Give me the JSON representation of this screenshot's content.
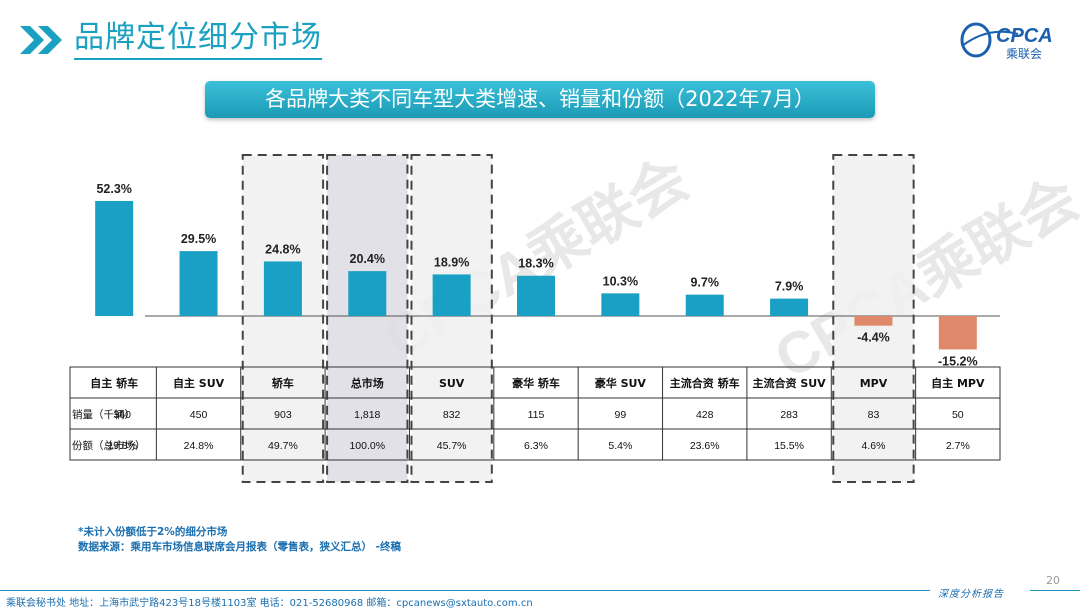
{
  "header": {
    "title": "品牌定位细分市场",
    "logo_text": "CPCA",
    "logo_subtext": "乘联会"
  },
  "banner": {
    "title": "各品牌大类不同车型大类增速、销量和份额（2022年7月）"
  },
  "chart_data": {
    "type": "bar",
    "categories": [
      "自主 轿车",
      "自主 SUV",
      "轿车",
      "总市场",
      "SUV",
      "豪华 轿车",
      "豪华 SUV",
      "主流合资 轿车",
      "主流合资 SUV",
      "MPV",
      "自主 MPV"
    ],
    "values": [
      52.3,
      29.5,
      24.8,
      20.4,
      18.9,
      18.3,
      10.3,
      9.7,
      7.9,
      -4.4,
      -15.2
    ],
    "value_labels": [
      "52.3%",
      "29.5%",
      "24.8%",
      "20.4%",
      "18.9%",
      "18.3%",
      "10.3%",
      "9.7%",
      "7.9%",
      "-4.4%",
      "-15.2%"
    ],
    "ylim": [
      -17,
      58
    ],
    "grid": false,
    "highlighted_columns": [
      2,
      3,
      4,
      9
    ],
    "colors": {
      "positive": "#19a0c4",
      "negative": "#e0896a",
      "highlight_fill": "#f0f0f0",
      "total_fill": "#dcdce3"
    }
  },
  "table": {
    "rows": [
      {
        "label": "销量（千辆）",
        "values": [
          "360",
          "450",
          "903",
          "1,818",
          "832",
          "115",
          "99",
          "428",
          "283",
          "83",
          "50"
        ]
      },
      {
        "label": "份额（总市场）",
        "values": [
          "19.8%",
          "24.8%",
          "49.7%",
          "100.0%",
          "45.7%",
          "6.3%",
          "5.4%",
          "23.6%",
          "15.5%",
          "4.6%",
          "2.7%"
        ]
      }
    ]
  },
  "watermark": "CPCA乘联会",
  "footnotes": {
    "line1": "*未计入份额低于2%的细分市场",
    "line2": "数据来源：乘用车市场信息联席会月报表（零售表，狭义汇总）  -终稿"
  },
  "footer": {
    "address": "乘联会秘书处   地址：上海市武宁路423号18号楼1103室   电话：021-52680968   邮箱：cpcanews@sxtauto.com.cn",
    "tagline": "深度分析报告",
    "page_number": "20"
  }
}
